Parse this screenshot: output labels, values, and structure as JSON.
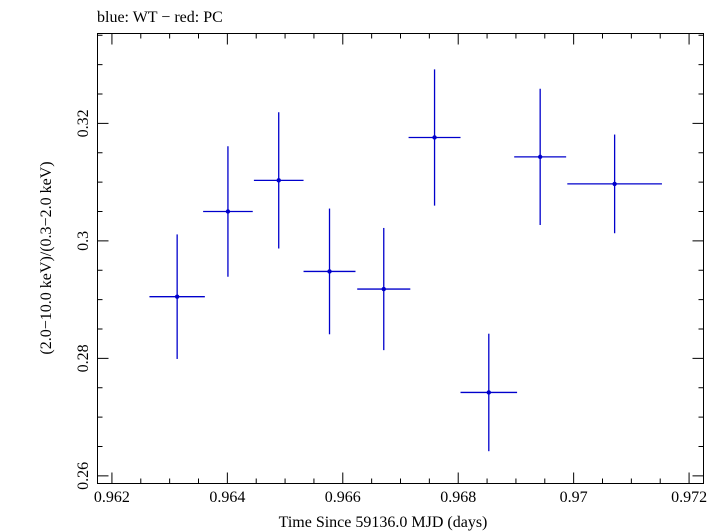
{
  "chart_data": {
    "type": "scatter",
    "title": "blue: WT − red: PC",
    "xlabel": "Time Since 59136.0 MJD (days)",
    "ylabel": "(2.0−10.0 keV)/(0.3−2.0 keV)",
    "xlim": [
      0.96175,
      0.97225
    ],
    "ylim": [
      0.2587,
      0.3353
    ],
    "x_ticks": [
      0.962,
      0.964,
      0.966,
      0.968,
      0.97,
      0.972
    ],
    "x_tick_labels": [
      "0.962",
      "0.964",
      "0.966",
      "0.968",
      "0.97",
      "0.972"
    ],
    "y_ticks": [
      0.26,
      0.28,
      0.3,
      0.32
    ],
    "y_tick_labels": [
      "0.26",
      "0.28",
      "0.3",
      "0.32"
    ],
    "x_minor_step": 0.0005,
    "y_minor_step": 0.005,
    "grid": false,
    "series": [
      {
        "color": "#0000cc",
        "points": [
          {
            "x": 0.96313,
            "xerr": 0.00048,
            "y": 0.2905,
            "yerr": 0.0106
          },
          {
            "x": 0.96401,
            "xerr": 0.00043,
            "y": 0.305,
            "yerr": 0.0111
          },
          {
            "x": 0.96489,
            "xerr": 0.00043,
            "y": 0.3103,
            "yerr": 0.0116
          },
          {
            "x": 0.96577,
            "xerr": 0.00045,
            "y": 0.2948,
            "yerr": 0.0107
          },
          {
            "x": 0.96671,
            "xerr": 0.00046,
            "y": 0.2918,
            "yerr": 0.0104
          },
          {
            "x": 0.96759,
            "xerr": 0.00045,
            "y": 0.3176,
            "yerr": 0.0116
          },
          {
            "x": 0.96853,
            "xerr": 0.00049,
            "y": 0.2742,
            "yerr": 0.01
          },
          {
            "x": 0.96942,
            "xerr": 0.00045,
            "y": 0.3143,
            "yerr": 0.0116
          },
          {
            "x": 0.97071,
            "xerr": 0.00082,
            "y": 0.3097,
            "yerr": 0.0084
          }
        ]
      }
    ]
  }
}
